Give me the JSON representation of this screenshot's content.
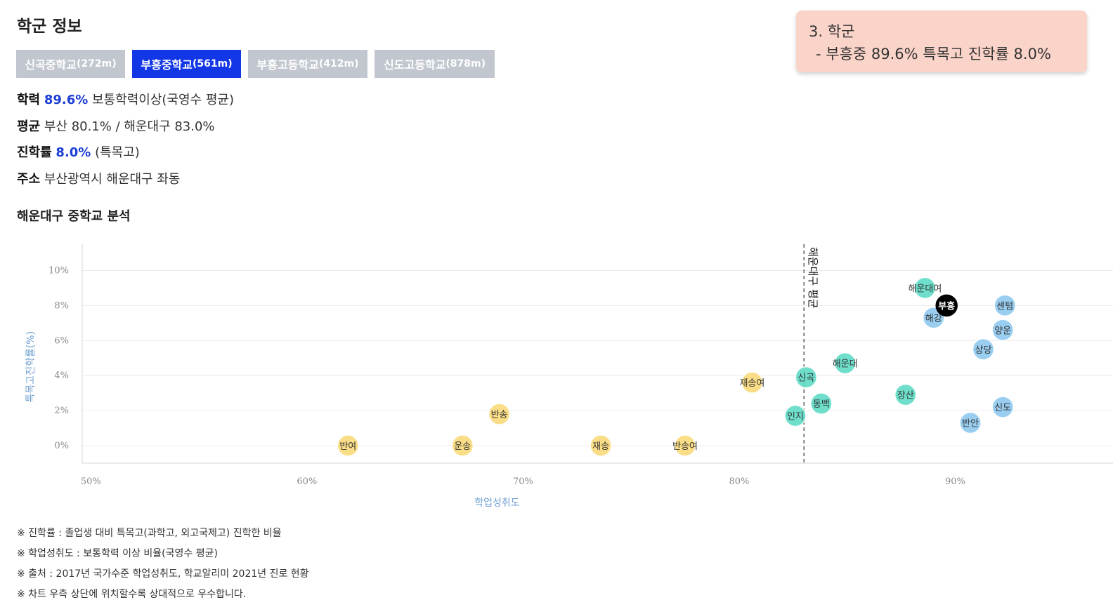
{
  "page": {
    "title": "학군 정보",
    "section_title": "해운대구 중학교 분석"
  },
  "tabs": [
    {
      "name": "신곡중학교",
      "dist": "(272m)",
      "active": false
    },
    {
      "name": "부흥중학교",
      "dist": "(561m)",
      "active": true
    },
    {
      "name": "부흥고등학교",
      "dist": "(412m)",
      "active": false
    },
    {
      "name": "신도고등학교",
      "dist": "(878m)",
      "active": false
    }
  ],
  "info": {
    "academic": {
      "label": "학력",
      "value": "89.6%",
      "text": "보통학력이상(국영수 평균)"
    },
    "average": {
      "label": "평균",
      "text": "부산 80.1% / 해운대구 83.0%"
    },
    "advancement": {
      "label": "진학률",
      "value": "8.0%",
      "text": "(특목고)"
    },
    "address": {
      "label": "주소",
      "text": "부산광역시 해운대구 좌동"
    }
  },
  "note_card": {
    "line1": "3. 학군",
    "line2": "- 부흥중 89.6%  특목고 진학률 8.0%"
  },
  "chart_data": {
    "type": "scatter",
    "xlabel": "학업성취도",
    "ylabel": "특목고진학률(%)",
    "x_ticks": [
      "50%",
      "60%",
      "70%",
      "80%",
      "90%"
    ],
    "y_ticks": [
      "0%",
      "2%",
      "4%",
      "6%",
      "8%",
      "10%"
    ],
    "xlim": [
      49.6,
      97.3
    ],
    "ylim": [
      -1.0,
      11.5
    ],
    "grid": true,
    "reference_line": {
      "x": 83.0,
      "label": "해운대구 평균"
    },
    "colors": {
      "yellow": "#f9d97a",
      "teal": "#5fdcc6",
      "blue": "#8ec9ef",
      "highlight": "#000000"
    },
    "points": [
      {
        "label": "반여",
        "x": 61.9,
        "y": 0.0,
        "color": "yellow"
      },
      {
        "label": "운송",
        "x": 67.2,
        "y": 0.0,
        "color": "yellow"
      },
      {
        "label": "반송",
        "x": 68.9,
        "y": 1.8,
        "color": "yellow"
      },
      {
        "label": "재송",
        "x": 73.6,
        "y": 0.0,
        "color": "yellow"
      },
      {
        "label": "반송여",
        "x": 77.5,
        "y": 0.0,
        "color": "yellow"
      },
      {
        "label": "재송여",
        "x": 80.6,
        "y": 3.6,
        "color": "yellow"
      },
      {
        "label": "인지",
        "x": 82.6,
        "y": 1.7,
        "color": "teal"
      },
      {
        "label": "신곡",
        "x": 83.1,
        "y": 3.9,
        "color": "teal"
      },
      {
        "label": "동백",
        "x": 83.8,
        "y": 2.4,
        "color": "teal"
      },
      {
        "label": "해운대",
        "x": 84.9,
        "y": 4.7,
        "color": "teal"
      },
      {
        "label": "장산",
        "x": 87.7,
        "y": 2.9,
        "color": "teal"
      },
      {
        "label": "해운대여",
        "x": 88.6,
        "y": 9.0,
        "color": "teal"
      },
      {
        "label": "해강",
        "x": 89.0,
        "y": 7.3,
        "color": "blue"
      },
      {
        "label": "부흥",
        "x": 89.6,
        "y": 8.0,
        "color": "highlight"
      },
      {
        "label": "반안",
        "x": 90.7,
        "y": 1.3,
        "color": "blue"
      },
      {
        "label": "상당",
        "x": 91.3,
        "y": 5.5,
        "color": "blue"
      },
      {
        "label": "양운",
        "x": 92.2,
        "y": 6.6,
        "color": "blue"
      },
      {
        "label": "센텀",
        "x": 92.3,
        "y": 8.0,
        "color": "blue"
      },
      {
        "label": "신도",
        "x": 92.2,
        "y": 2.2,
        "color": "blue"
      }
    ]
  },
  "footnotes": [
    "※ 진학률 : 졸업생 대비 특목고(과학고, 외고국제고) 진학한 비율",
    "※ 학업성취도 : 보통학력 이상 비율(국영수 평균)",
    "※ 출처 : 2017년 국가수준 학업성취도, 학교알리미 2021년 진로 현황",
    "※ 차트 우측 상단에 위치할수록 상대적으로 우수합니다."
  ]
}
